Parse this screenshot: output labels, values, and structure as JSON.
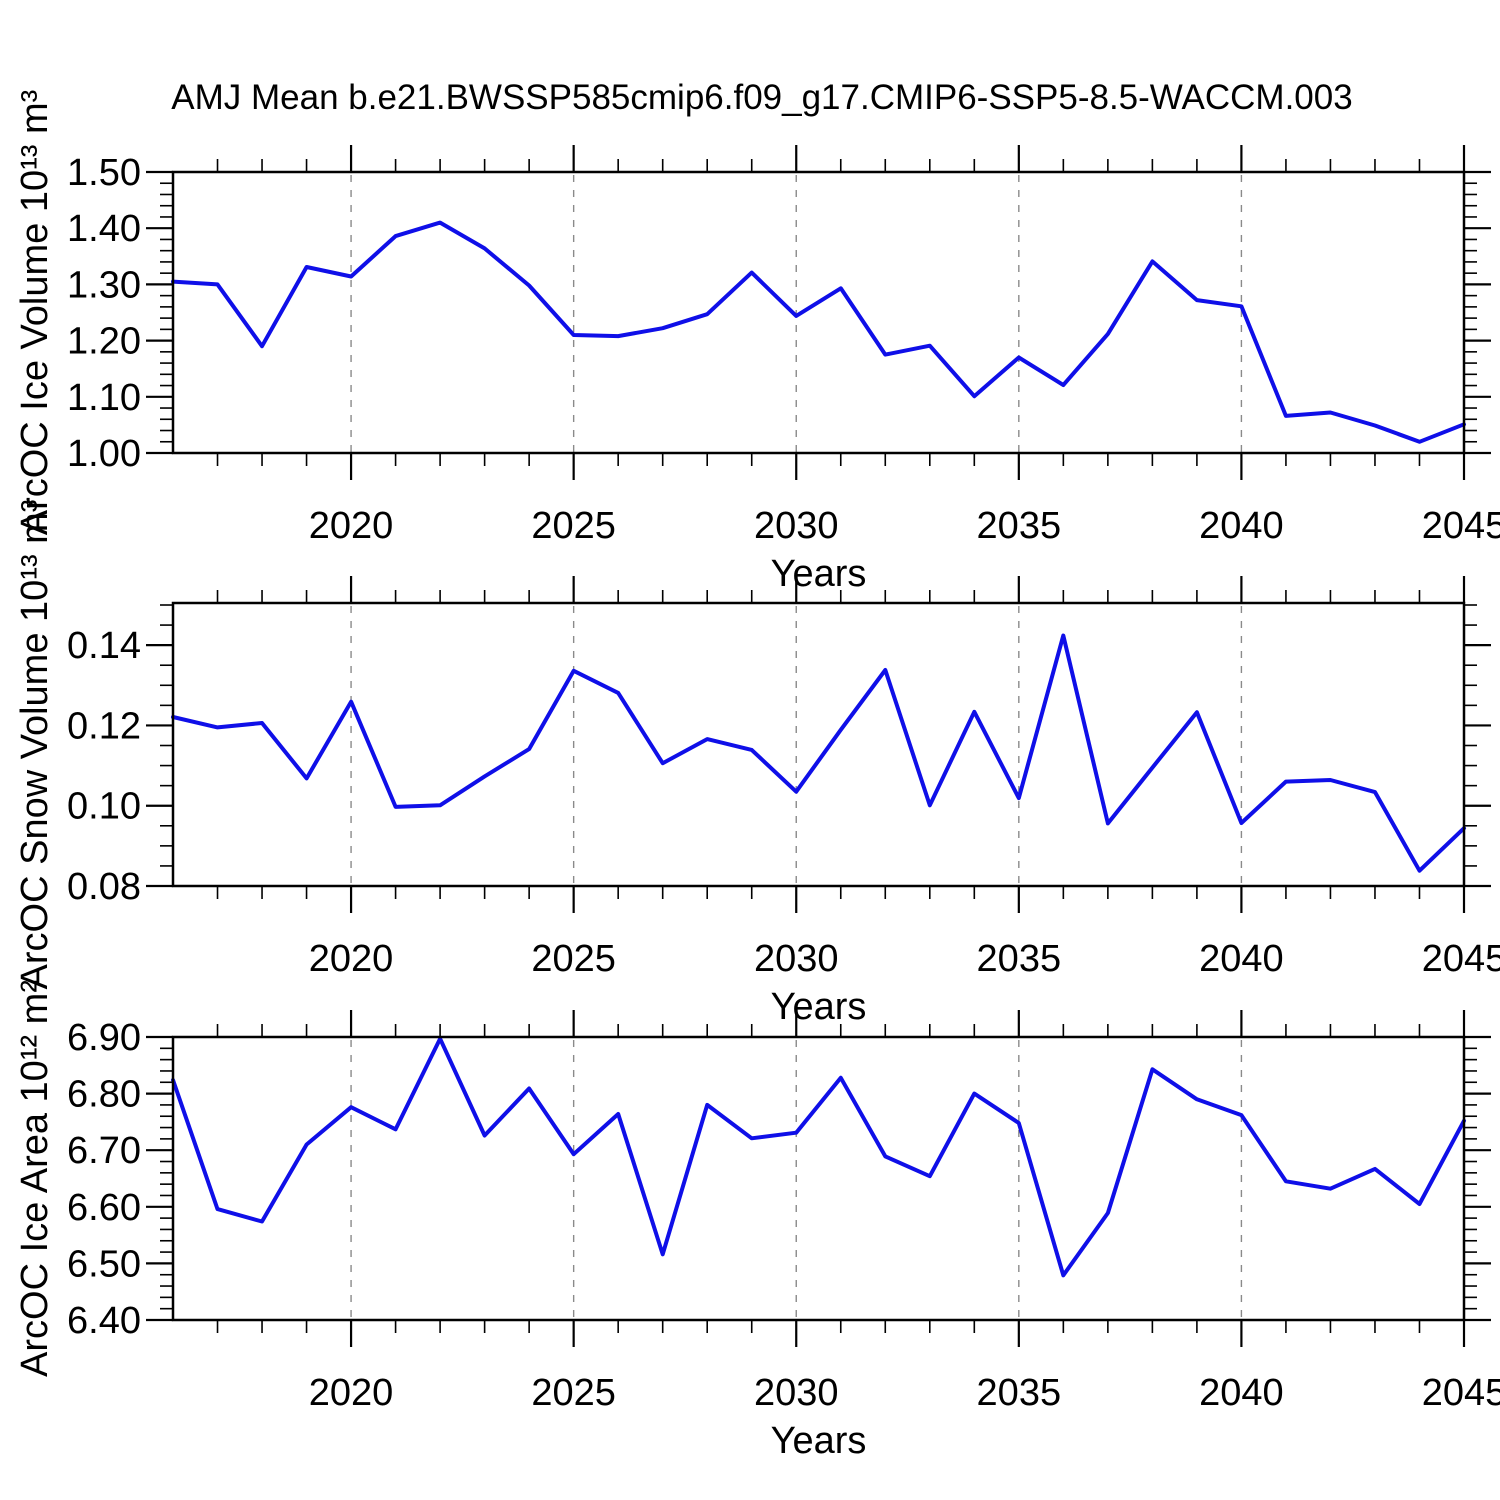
{
  "title": "AMJ Mean b.e21.BWSSP585cmip6.f09_g17.CMIP6-SSP5-8.5-WACCM.003",
  "style": {
    "line_color": "#0f0fe8",
    "axis_color": "#000000",
    "grid_color": "#8a8a8a",
    "background": "#ffffff"
  },
  "chart_data": [
    {
      "type": "line",
      "id": "ice-volume",
      "ylabel": "ArcOC Ice Volume 10¹³ m³",
      "xlabel": "Years",
      "x": [
        2016,
        2017,
        2018,
        2019,
        2020,
        2021,
        2022,
        2023,
        2024,
        2025,
        2026,
        2027,
        2028,
        2029,
        2030,
        2031,
        2032,
        2033,
        2034,
        2035,
        2036,
        2037,
        2038,
        2039,
        2040,
        2041,
        2042,
        2043,
        2044,
        2045
      ],
      "values": [
        1.305,
        1.3,
        1.19,
        1.331,
        1.314,
        1.386,
        1.41,
        1.364,
        1.298,
        1.21,
        1.208,
        1.222,
        1.247,
        1.321,
        1.244,
        1.293,
        1.175,
        1.191,
        1.101,
        1.17,
        1.121,
        1.212,
        1.341,
        1.272,
        1.261,
        1.066,
        1.072,
        1.049,
        1.02,
        1.051
      ],
      "xlim": [
        2016,
        2045
      ],
      "ylim": [
        1.0,
        1.5
      ],
      "xticks": [
        2020,
        2025,
        2030,
        2035,
        2040,
        2045
      ],
      "x_tick_labels": [
        "2020",
        "2025",
        "2030",
        "2035",
        "2040",
        "2045"
      ],
      "yticks": [
        1.0,
        1.1,
        1.2,
        1.3,
        1.4,
        1.5
      ],
      "y_tick_labels": [
        "1.00",
        "1.10",
        "1.20",
        "1.30",
        "1.40",
        "1.50"
      ],
      "y_minor_step": 0.02,
      "grid_years": [
        2020,
        2025,
        2030,
        2035,
        2040
      ],
      "grid_style": "vertical-dashed",
      "legend": "none"
    },
    {
      "type": "line",
      "id": "snow-volume",
      "ylabel": "ArcOC Snow Volume 10¹³ m³",
      "xlabel": "Years",
      "x": [
        2016,
        2017,
        2018,
        2019,
        2020,
        2021,
        2022,
        2023,
        2024,
        2025,
        2026,
        2027,
        2028,
        2029,
        2030,
        2031,
        2032,
        2033,
        2034,
        2035,
        2036,
        2037,
        2038,
        2039,
        2040,
        2041,
        2042,
        2043,
        2044,
        2045
      ],
      "values": [
        0.1221,
        0.1195,
        0.1206,
        0.1068,
        0.1259,
        0.0997,
        0.1001,
        0.1073,
        0.1141,
        0.1336,
        0.1281,
        0.1106,
        0.1166,
        0.1139,
        0.1035,
        0.1189,
        0.1338,
        0.1001,
        0.1234,
        0.1019,
        0.1424,
        0.0956,
        0.1095,
        0.1233,
        0.0957,
        0.106,
        0.1064,
        0.1034,
        0.0838,
        0.0944
      ],
      "xlim": [
        2016,
        2045
      ],
      "ylim": [
        0.08,
        0.1505
      ],
      "xticks": [
        2020,
        2025,
        2030,
        2035,
        2040,
        2045
      ],
      "x_tick_labels": [
        "2020",
        "2025",
        "2030",
        "2035",
        "2040",
        "2045"
      ],
      "yticks": [
        0.08,
        0.1,
        0.12,
        0.14
      ],
      "y_tick_labels": [
        "0.08",
        "0.10",
        "0.12",
        "0.14"
      ],
      "y_minor_step": 0.005,
      "grid_years": [
        2020,
        2025,
        2030,
        2035,
        2040
      ],
      "grid_style": "vertical-dashed",
      "legend": "none"
    },
    {
      "type": "line",
      "id": "ice-area",
      "ylabel": "ArcOC Ice Area 10¹² m²",
      "xlabel": "Years",
      "x": [
        2016,
        2017,
        2018,
        2019,
        2020,
        2021,
        2022,
        2023,
        2024,
        2025,
        2026,
        2027,
        2028,
        2029,
        2030,
        2031,
        2032,
        2033,
        2034,
        2035,
        2036,
        2037,
        2038,
        2039,
        2040,
        2041,
        2042,
        2043,
        2044,
        2045
      ],
      "values": [
        6.824,
        6.596,
        6.574,
        6.71,
        6.776,
        6.737,
        6.897,
        6.726,
        6.809,
        6.693,
        6.764,
        6.516,
        6.78,
        6.721,
        6.731,
        6.828,
        6.689,
        6.654,
        6.8,
        6.748,
        6.479,
        6.589,
        6.843,
        6.79,
        6.762,
        6.645,
        6.632,
        6.667,
        6.605,
        6.752
      ],
      "xlim": [
        2016,
        2045
      ],
      "ylim": [
        6.4,
        6.9
      ],
      "xticks": [
        2020,
        2025,
        2030,
        2035,
        2040,
        2045
      ],
      "x_tick_labels": [
        "2020",
        "2025",
        "2030",
        "2035",
        "2040",
        "2045"
      ],
      "yticks": [
        6.4,
        6.5,
        6.6,
        6.7,
        6.8,
        6.9
      ],
      "y_tick_labels": [
        "6.40",
        "6.50",
        "6.60",
        "6.70",
        "6.80",
        "6.90"
      ],
      "y_minor_step": 0.02,
      "grid_years": [
        2020,
        2025,
        2030,
        2035,
        2040
      ],
      "grid_style": "vertical-dashed",
      "legend": "none"
    }
  ]
}
